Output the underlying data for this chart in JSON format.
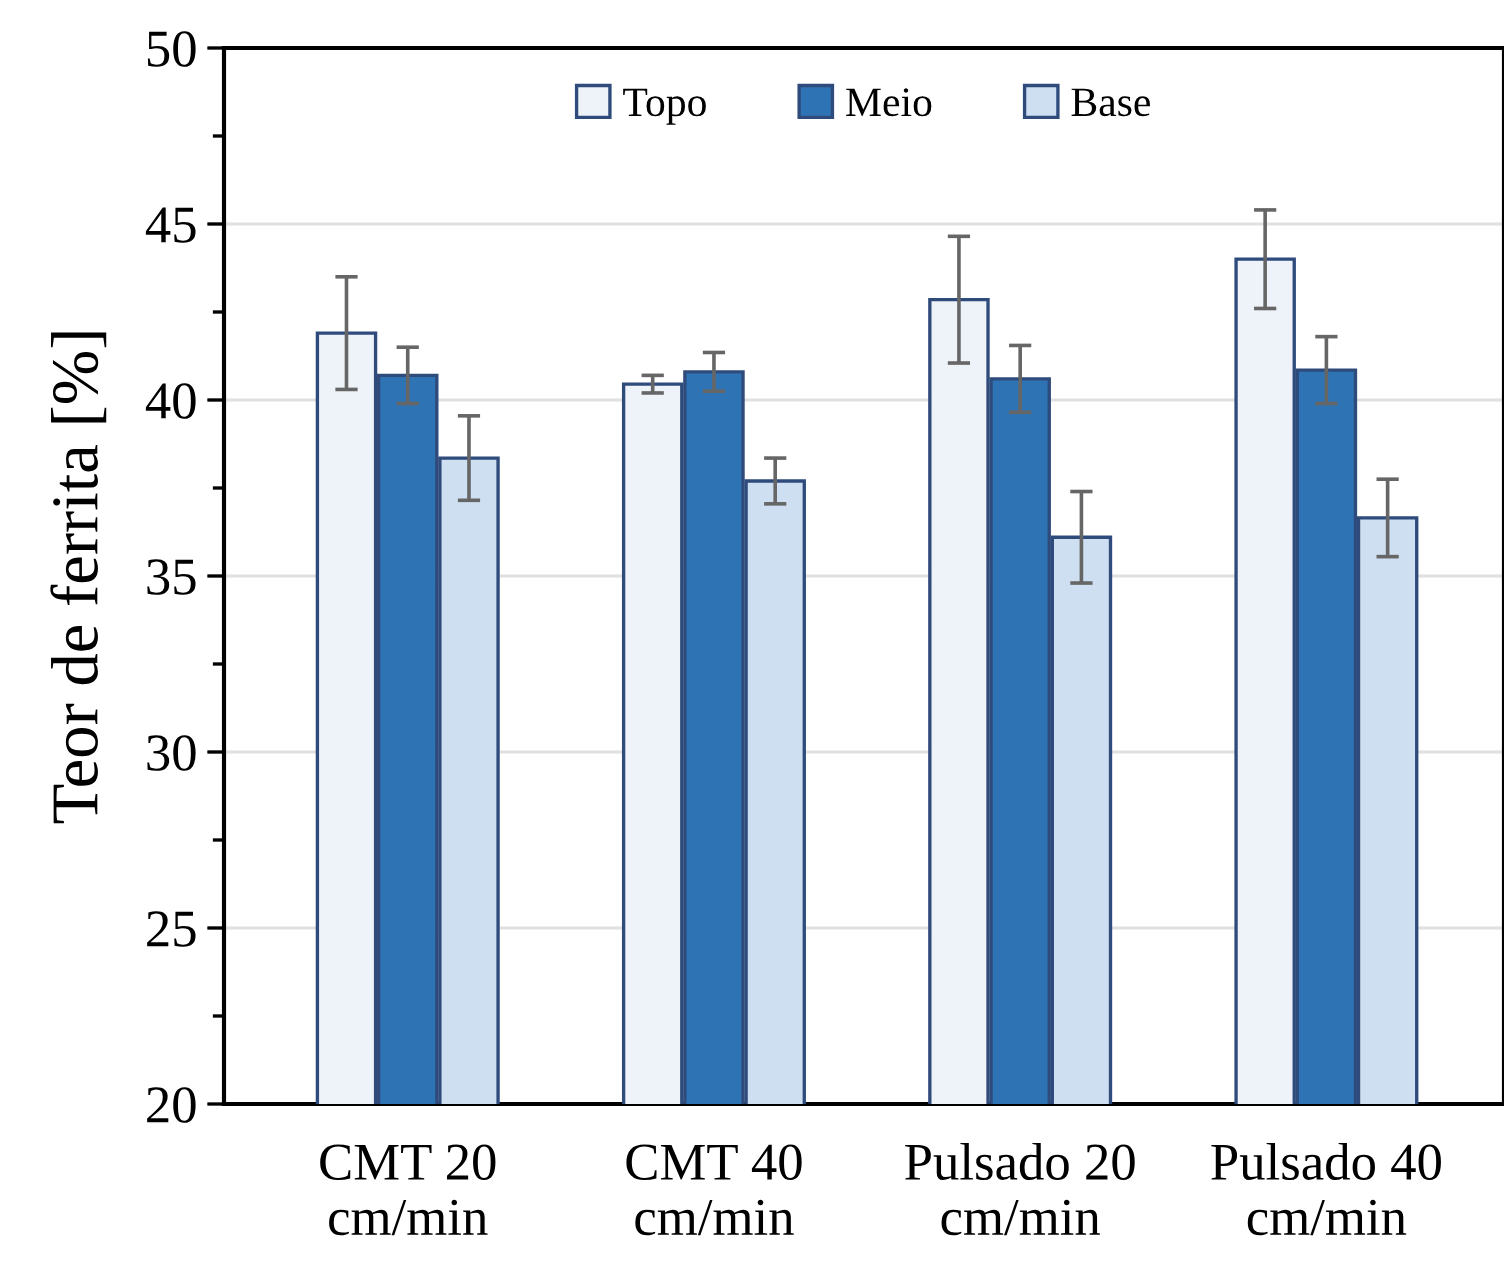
{
  "chart_data": {
    "type": "bar",
    "ylabel": "Teor de ferrita [%]",
    "categories": [
      "CMT 20\ncm/min",
      "CMT 40\ncm/min",
      "Pulsado 20\ncm/min",
      "Pulsado 40\ncm/min"
    ],
    "series": [
      {
        "name": "Topo",
        "color": "#eef2f9",
        "values": [
          41.9,
          40.45,
          42.85,
          44.0
        ],
        "errors": [
          1.6,
          0.25,
          1.8,
          1.4
        ]
      },
      {
        "name": "Meio",
        "color": "#2e74b5",
        "values": [
          40.7,
          40.8,
          40.6,
          40.85
        ],
        "errors": [
          0.8,
          0.55,
          0.95,
          0.95
        ]
      },
      {
        "name": "Base",
        "color": "#cddff0",
        "values": [
          38.35,
          37.7,
          36.1,
          36.65
        ],
        "errors": [
          1.2,
          0.65,
          1.3,
          1.1
        ]
      }
    ],
    "ylim": [
      20,
      50
    ],
    "yticks": [
      20,
      25,
      30,
      35,
      40,
      45,
      50
    ],
    "grid": "y",
    "legend": "top"
  }
}
